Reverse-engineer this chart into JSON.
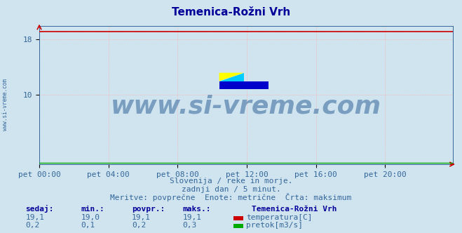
{
  "title": "Temenica-Rožni Vrh",
  "title_color": "#000099",
  "bg_color": "#d0e4f0",
  "plot_bg_color": "#d0e4f0",
  "grid_color": "#ffaaaa",
  "grid_style": ":",
  "x_labels": [
    "pet 00:00",
    "pet 04:00",
    "pet 08:00",
    "pet 12:00",
    "pet 16:00",
    "pet 20:00"
  ],
  "x_ticks": [
    0,
    48,
    96,
    144,
    192,
    240
  ],
  "x_max": 287,
  "y_min": 0,
  "y_max": 20,
  "y_ticks": [
    10,
    18
  ],
  "temp_value": 19.1,
  "temp_min": 19.0,
  "temp_max": 19.1,
  "temp_color": "#cc0000",
  "temp_dotted_color": "#ffaaaa",
  "flow_value": 0.2,
  "flow_min": 0.1,
  "flow_max": 0.3,
  "flow_color": "#00aa00",
  "watermark": "www.si-vreme.com",
  "watermark_color": "#336699",
  "watermark_alpha": 0.55,
  "watermark_fontsize": 26,
  "sidebar_text": "www.si-vreme.com",
  "sidebar_color": "#336699",
  "subtitle1": "Slovenija / reke in morje.",
  "subtitle2": "zadnji dan / 5 minut.",
  "subtitle3": "Meritve: povprečne  Enote: metrične  Črta: maksimum",
  "subtitle_color": "#336699",
  "legend_title": "Temenica-Rožni Vrh",
  "legend_title_color": "#000099",
  "label_sedaj": "sedaj:",
  "label_min": "min.:",
  "label_povpr": "povpr.:",
  "label_maks": "maks.:",
  "table_header_color": "#000099",
  "table_value_color": "#336699",
  "temp_label": "temperatura[C]",
  "flow_label": "pretok[m3/s]",
  "temp_sedaj": "19,1",
  "temp_min_s": "19,0",
  "temp_povpr": "19,1",
  "temp_maks": "19,1",
  "flow_sedaj": "0,2",
  "flow_min_s": "0,1",
  "flow_povpr": "0,2",
  "flow_maks": "0,3",
  "tick_color": "#336699",
  "spine_color": "#336699",
  "arrow_color": "#cc0000"
}
